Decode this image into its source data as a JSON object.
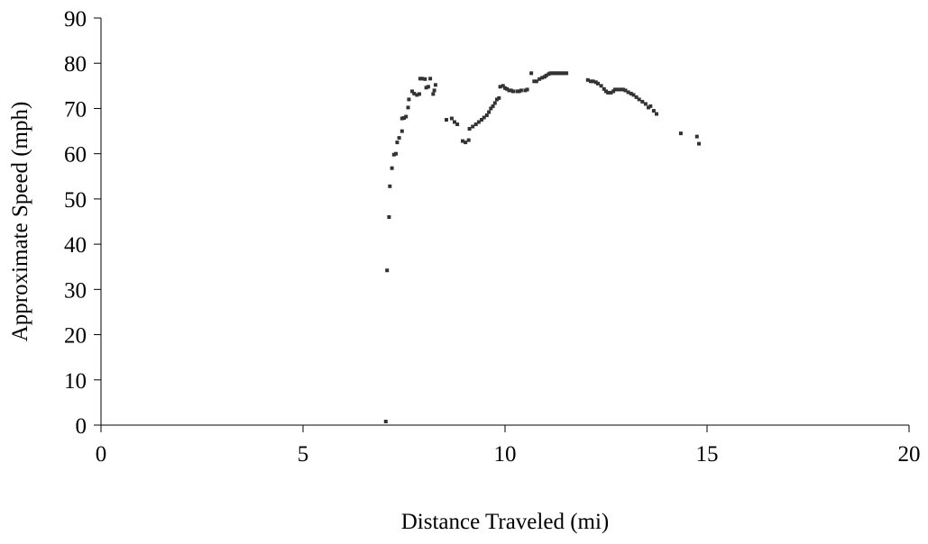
{
  "chart_data": {
    "type": "scatter",
    "title": "",
    "xlabel": "Distance Traveled (mi)",
    "ylabel": "Approximate Speed (mph)",
    "xlim": [
      0,
      20
    ],
    "ylim": [
      0,
      90
    ],
    "xticks": [
      0,
      5,
      10,
      15,
      20
    ],
    "yticks": [
      0,
      10,
      20,
      30,
      40,
      50,
      60,
      70,
      80,
      90
    ],
    "grid": false,
    "legend": "none",
    "marker_color": "#333333",
    "series": [
      {
        "points": [
          [
            7.05,
            0.8
          ],
          [
            7.08,
            34.2
          ],
          [
            7.13,
            46.0
          ],
          [
            7.15,
            52.8
          ],
          [
            7.2,
            56.8
          ],
          [
            7.25,
            59.8
          ],
          [
            7.3,
            60.0
          ],
          [
            7.33,
            62.5
          ],
          [
            7.38,
            63.5
          ],
          [
            7.45,
            65.0
          ],
          [
            7.45,
            67.8
          ],
          [
            7.5,
            67.9
          ],
          [
            7.55,
            68.2
          ],
          [
            7.6,
            70.2
          ],
          [
            7.62,
            72.0
          ],
          [
            7.7,
            73.8
          ],
          [
            7.75,
            73.3
          ],
          [
            7.82,
            73.0
          ],
          [
            7.88,
            73.2
          ],
          [
            7.9,
            76.6
          ],
          [
            7.95,
            76.6
          ],
          [
            8.02,
            76.5
          ],
          [
            8.05,
            74.6
          ],
          [
            8.1,
            74.8
          ],
          [
            8.15,
            76.6
          ],
          [
            8.22,
            73.2
          ],
          [
            8.25,
            74.0
          ],
          [
            8.28,
            75.2
          ],
          [
            8.55,
            67.5
          ],
          [
            8.68,
            67.8
          ],
          [
            8.75,
            67.0
          ],
          [
            8.82,
            66.5
          ],
          [
            8.95,
            62.8
          ],
          [
            9.02,
            62.5
          ],
          [
            9.1,
            63.0
          ],
          [
            9.12,
            65.5
          ],
          [
            9.2,
            66.0
          ],
          [
            9.28,
            66.5
          ],
          [
            9.35,
            67.0
          ],
          [
            9.42,
            67.5
          ],
          [
            9.48,
            68.0
          ],
          [
            9.55,
            68.5
          ],
          [
            9.6,
            69.2
          ],
          [
            9.65,
            70.0
          ],
          [
            9.7,
            70.5
          ],
          [
            9.75,
            71.2
          ],
          [
            9.8,
            72.0
          ],
          [
            9.85,
            72.3
          ],
          [
            9.88,
            74.8
          ],
          [
            9.95,
            75.0
          ],
          [
            10.0,
            74.5
          ],
          [
            10.05,
            74.3
          ],
          [
            10.1,
            74.0
          ],
          [
            10.15,
            74.0
          ],
          [
            10.2,
            73.8
          ],
          [
            10.3,
            73.8
          ],
          [
            10.35,
            73.8
          ],
          [
            10.4,
            74.0
          ],
          [
            10.5,
            74.0
          ],
          [
            10.55,
            74.2
          ],
          [
            10.65,
            77.8
          ],
          [
            10.72,
            76.0
          ],
          [
            10.78,
            76.0
          ],
          [
            10.85,
            76.5
          ],
          [
            10.92,
            76.8
          ],
          [
            10.98,
            77.0
          ],
          [
            11.02,
            77.3
          ],
          [
            11.08,
            77.6
          ],
          [
            11.12,
            77.8
          ],
          [
            11.18,
            77.8
          ],
          [
            11.22,
            77.8
          ],
          [
            11.28,
            77.8
          ],
          [
            11.32,
            77.8
          ],
          [
            11.38,
            77.8
          ],
          [
            11.42,
            77.8
          ],
          [
            11.48,
            77.8
          ],
          [
            11.52,
            77.8
          ],
          [
            12.05,
            76.3
          ],
          [
            12.12,
            76.0
          ],
          [
            12.18,
            76.0
          ],
          [
            12.25,
            75.8
          ],
          [
            12.3,
            75.5
          ],
          [
            12.38,
            75.0
          ],
          [
            12.45,
            74.3
          ],
          [
            12.5,
            73.8
          ],
          [
            12.55,
            73.5
          ],
          [
            12.62,
            73.5
          ],
          [
            12.68,
            73.8
          ],
          [
            12.72,
            74.2
          ],
          [
            12.78,
            74.2
          ],
          [
            12.85,
            74.2
          ],
          [
            12.92,
            74.2
          ],
          [
            12.98,
            74.0
          ],
          [
            13.05,
            73.6
          ],
          [
            13.12,
            73.3
          ],
          [
            13.18,
            73.0
          ],
          [
            13.25,
            72.5
          ],
          [
            13.32,
            72.0
          ],
          [
            13.4,
            71.5
          ],
          [
            13.48,
            71.0
          ],
          [
            13.55,
            70.2
          ],
          [
            13.6,
            70.5
          ],
          [
            13.68,
            69.5
          ],
          [
            13.75,
            68.8
          ],
          [
            14.35,
            64.5
          ],
          [
            14.75,
            63.8
          ],
          [
            14.8,
            62.2
          ]
        ]
      }
    ]
  }
}
